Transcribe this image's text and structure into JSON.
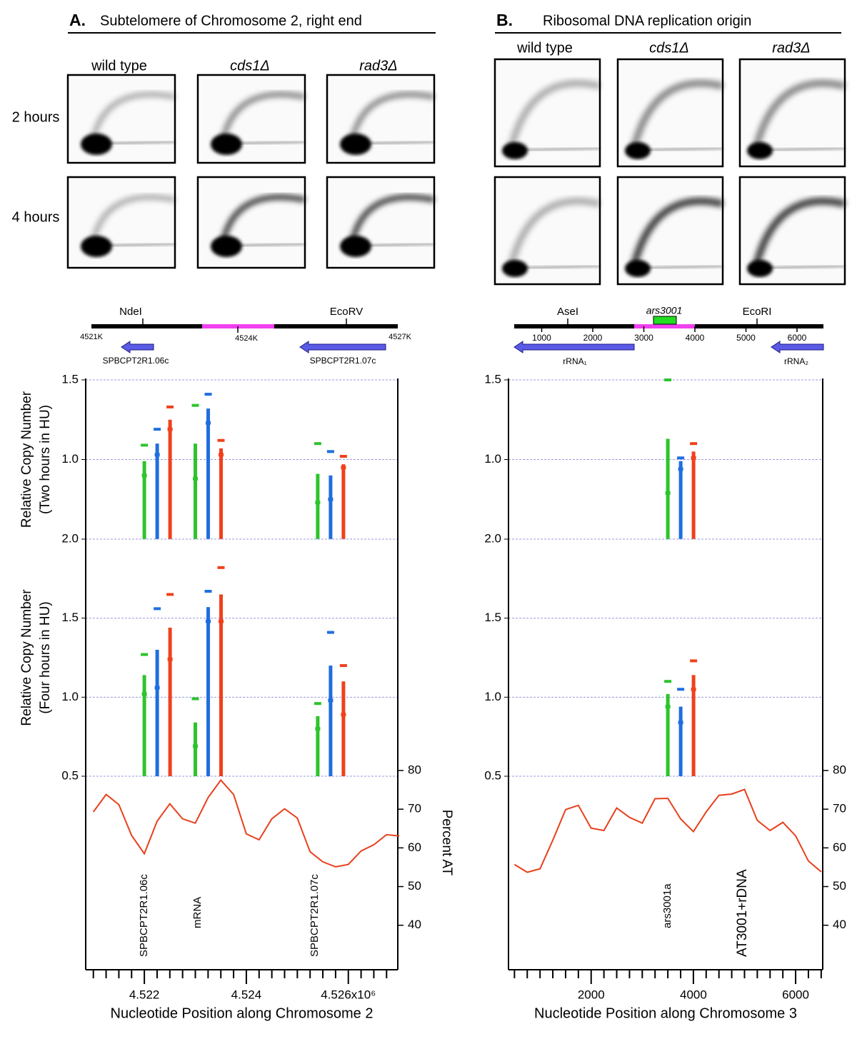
{
  "panels": [
    {
      "label": "A.",
      "title": "Subtelomere of Chromosome 2, right end",
      "gels": {
        "columns": [
          "wild type",
          "cds1Δ",
          "rad3Δ"
        ],
        "rows": [
          "2 hours",
          "4 hours"
        ]
      },
      "map": {
        "ends": [
          "4521K",
          "4524K",
          "4527K"
        ],
        "sites": [
          "NdeI",
          "EcoRV"
        ],
        "genes": [
          "SPBCPT2R1.06c",
          "SPBCPT2R1.07c"
        ]
      }
    },
    {
      "label": "B.",
      "title": "Ribosomal DNA replication origin",
      "gels": {
        "columns": [
          "wild type",
          "cds1Δ",
          "rad3Δ"
        ]
      },
      "map": {
        "origin": "ars3001",
        "ticks": [
          1000,
          2000,
          3000,
          4000,
          5000,
          6000
        ],
        "sites": [
          "AseI",
          "EcoRI"
        ],
        "genes": [
          "rRNA₁",
          "rRNA₂"
        ]
      }
    }
  ],
  "chart_data": [
    {
      "type": "bar",
      "ylabel": [
        "Relative Copy Number",
        "(Two hours in HU)"
      ],
      "x": [
        4.522,
        4.523,
        4.5254
      ],
      "xlim": [
        4.52085,
        4.52697
      ],
      "ylim": [
        0.5,
        1.5
      ],
      "yticks": [
        {
          "value": 1,
          "label": "1.0"
        },
        1.5
      ],
      "grid": true,
      "series": [
        {
          "color": "#2cc42c",
          "values": [
            0.9,
            0.88,
            0.73
          ],
          "upper": [
            0.99,
            1.1,
            0.91
          ],
          "max": [
            1.09,
            1.34,
            1.1
          ]
        },
        {
          "color": "#1f6ee0",
          "values": [
            1.03,
            1.23,
            0.75
          ],
          "upper": [
            1.1,
            1.32,
            0.9
          ],
          "max": [
            1.19,
            1.41,
            1.05
          ]
        },
        {
          "color": "#f0401c",
          "values": [
            1.19,
            1.03,
            0.95
          ],
          "upper": [
            1.25,
            1.07,
            0.97
          ],
          "max": [
            1.33,
            1.12,
            1.02
          ]
        }
      ]
    },
    {
      "type": "bar",
      "ylabel": [
        "Relative Copy Number",
        "(Four hours in HU)"
      ],
      "x": [
        4.522,
        4.523,
        4.5254
      ],
      "xlim": [
        4.52085,
        4.52697
      ],
      "ylim": [
        0.5,
        2
      ],
      "yticks": [
        0.5,
        {
          "value": 1,
          "label": "1.0"
        },
        1.5,
        {
          "value": 2,
          "label": "2.0"
        }
      ],
      "grid": true,
      "series": [
        {
          "color": "#2cc42c",
          "values": [
            1.02,
            0.69,
            0.8
          ],
          "upper": [
            1.14,
            0.84,
            0.88
          ],
          "max": [
            1.27,
            0.99,
            0.96
          ]
        },
        {
          "color": "#1f6ee0",
          "values": [
            1.06,
            1.48,
            0.98
          ],
          "upper": [
            1.3,
            1.57,
            1.2
          ],
          "max": [
            1.56,
            1.67,
            1.41
          ]
        },
        {
          "color": "#f0401c",
          "values": [
            1.24,
            1.48,
            0.89
          ],
          "upper": [
            1.44,
            1.65,
            1.1
          ],
          "max": [
            1.65,
            1.82,
            1.2
          ]
        }
      ]
    },
    {
      "type": "line",
      "ylabel": "Percent AT",
      "xlabel": "Nucleotide Position along Chromosome 2",
      "x": [
        4.521,
        4.52125,
        4.5215,
        4.52175,
        4.522,
        4.52225,
        4.5225,
        4.52275,
        4.523,
        4.52325,
        4.5235,
        4.52375,
        4.524,
        4.52425,
        4.5245,
        4.52475,
        4.525,
        4.52525,
        4.5255,
        4.52575,
        4.526,
        4.52625,
        4.5265,
        4.52675,
        4.527
      ],
      "xlim": [
        4.52085,
        4.52697
      ],
      "xticks": [
        4.522,
        4.524,
        {
          "value": 4.526,
          "label": "4.526x10⁶"
        }
      ],
      "xminorticks": [
        4.521,
        4.52125,
        4.5215,
        4.52175,
        4.52225,
        4.5225,
        4.52275,
        4.523,
        4.52325,
        4.5235,
        4.52375,
        4.52425,
        4.5245,
        4.52475,
        4.525,
        4.52525,
        4.5255,
        4.52575,
        4.52625,
        4.5265,
        4.52675
      ],
      "ylim": [
        28.5,
        80
      ],
      "yticks": [
        40,
        50,
        60,
        70,
        80
      ],
      "series": [
        {
          "color": "#e8401c",
          "values": [
            69.3,
            73.8,
            71.2,
            63.2,
            58.5,
            66.9,
            71.4,
            67.5,
            66.4,
            73,
            77.5,
            73.8,
            63.6,
            62.1,
            67.5,
            70.1,
            67.7,
            59,
            56.4,
            55.1,
            55.7,
            59.2,
            60.8,
            63.4,
            63.1
          ]
        }
      ],
      "annotations": [
        "SPBCPT2R1.06c",
        "mRNA",
        "SPBCPT2R1.07c"
      ],
      "annotation_colors": [
        "#000000",
        "#000000",
        "#000000"
      ]
    },
    {
      "type": "bar",
      "x": [
        3500
      ],
      "xlim": [
        383,
        6530
      ],
      "ylim": [
        0.5,
        1.5
      ],
      "yticks": [
        {
          "value": 1,
          "label": "1.0"
        },
        1.5
      ],
      "grid": true,
      "series": [
        {
          "color": "#2cc42c",
          "values": [
            0.79
          ],
          "upper": [
            1.13
          ],
          "max": [
            1.5
          ]
        },
        {
          "color": "#1f6ee0",
          "values": [
            0.94
          ],
          "upper": [
            0.99
          ],
          "max": [
            1.01
          ]
        },
        {
          "color": "#f0401c",
          "values": [
            1.01
          ],
          "upper": [
            1.05
          ],
          "max": [
            1.1
          ]
        }
      ]
    },
    {
      "type": "bar",
      "x": [
        3500
      ],
      "xlim": [
        383,
        6530
      ],
      "ylim": [
        0.5,
        2
      ],
      "yticks": [
        0.5,
        {
          "value": 1,
          "label": "1.0"
        },
        1.5,
        {
          "value": 2,
          "label": "2.0"
        }
      ],
      "grid": true,
      "series": [
        {
          "color": "#2cc42c",
          "values": [
            0.94
          ],
          "upper": [
            1.02
          ],
          "max": [
            1.1
          ]
        },
        {
          "color": "#1f6ee0",
          "values": [
            0.84
          ],
          "upper": [
            0.94
          ],
          "max": [
            1.05
          ]
        },
        {
          "color": "#f0401c",
          "values": [
            1.05
          ],
          "upper": [
            1.14
          ],
          "max": [
            1.23
          ]
        }
      ]
    },
    {
      "type": "line",
      "xlabel": "Nucleotide Position along Chromosome 3",
      "x": [
        500,
        750,
        1000,
        1250,
        1500,
        1750,
        2000,
        2250,
        2500,
        2750,
        3000,
        3250,
        3500,
        3750,
        4000,
        4250,
        4500,
        4750,
        5000,
        5250,
        5500,
        5750,
        6000,
        6250,
        6500
      ],
      "xlim": [
        383,
        6530
      ],
      "xticks": [
        2000,
        4000,
        6000
      ],
      "xminorticks": [
        500,
        750,
        1000,
        1250,
        1500,
        1750,
        2250,
        2500,
        2750,
        3000,
        3250,
        3500,
        3750,
        4250,
        4500,
        4750,
        5000,
        5250,
        5500,
        5750,
        6250,
        6500
      ],
      "ylim": [
        28.5,
        80
      ],
      "yticks": [
        40,
        50,
        60,
        70,
        80
      ],
      "series": [
        {
          "color": "#e8401c",
          "values": [
            55.7,
            53.7,
            54.6,
            62,
            69.9,
            71,
            65.1,
            64.5,
            70.3,
            67.9,
            66.4,
            72.7,
            72.8,
            67.5,
            64.2,
            69.3,
            73.6,
            73.9,
            75.1,
            67.1,
            64.5,
            66.6,
            63.1,
            56.6,
            53.8
          ]
        }
      ],
      "annotations": [
        "ars3001a",
        "AT3001+rDNA"
      ],
      "annotation_colors": [
        "#000000",
        "#e040c0"
      ]
    }
  ]
}
